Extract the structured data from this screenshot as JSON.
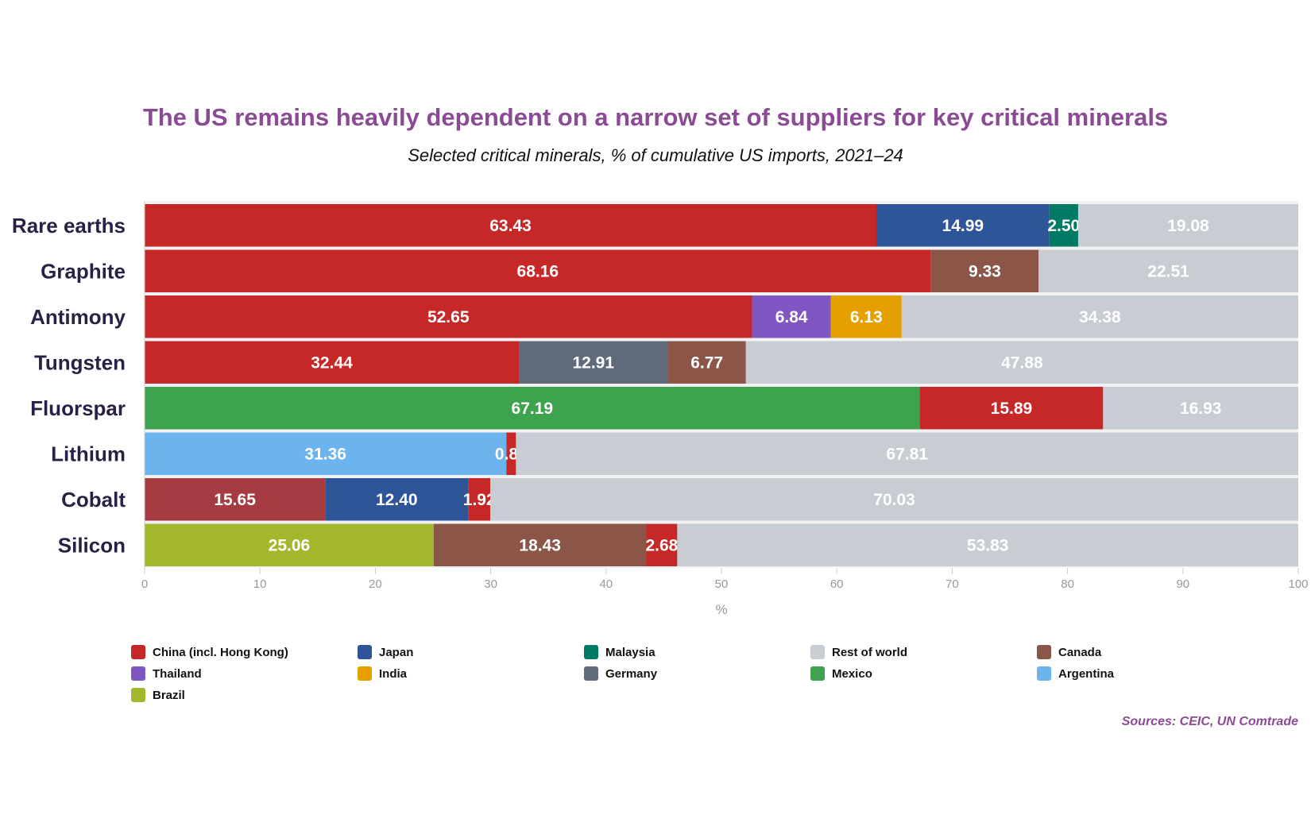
{
  "chart_data": {
    "type": "bar",
    "orientation": "horizontal",
    "stacked": true,
    "title": "The US remains heavily dependent on a narrow set of suppliers for key critical minerals",
    "subtitle": "Selected critical minerals, % of cumulative US imports, 2021–24",
    "xlabel": "%",
    "xlim": [
      0,
      100
    ],
    "xticks": [
      0,
      10,
      20,
      30,
      40,
      50,
      60,
      70,
      80,
      90,
      100
    ],
    "categories": [
      "Rare earths",
      "Graphite",
      "Antimony",
      "Tungsten",
      "Fluorspar",
      "Lithium",
      "Cobalt",
      "Silicon"
    ],
    "legend_position": "bottom",
    "countries": [
      {
        "name": "China (incl. Hong Kong)",
        "color": "#c62828"
      },
      {
        "name": "Japan",
        "color": "#2e5597"
      },
      {
        "name": "Malaysia",
        "color": "#007a65"
      },
      {
        "name": "Rest of world",
        "color": "#c8ccd3"
      },
      {
        "name": "Canada",
        "color": "#8b5548"
      },
      {
        "name": "Thailand",
        "color": "#7e57c2"
      },
      {
        "name": "India",
        "color": "#e5a000"
      },
      {
        "name": "Germany",
        "color": "#5f6b7a"
      },
      {
        "name": "Mexico",
        "color": "#3ea34f"
      },
      {
        "name": "Argentina",
        "color": "#6cb4ee"
      },
      {
        "name": "Brazil",
        "color": "#a3b62c"
      }
    ],
    "unlisted_color": "#a63c42",
    "bars": [
      [
        {
          "c": "China (incl. Hong Kong)",
          "v": 63.43
        },
        {
          "c": "Japan",
          "v": 14.99
        },
        {
          "c": "Malaysia",
          "v": 2.5
        },
        {
          "c": "Rest of world",
          "v": 19.08
        }
      ],
      [
        {
          "c": "China (incl. Hong Kong)",
          "v": 68.16
        },
        {
          "c": "Canada",
          "v": 9.33
        },
        {
          "c": "Rest of world",
          "v": 22.51
        }
      ],
      [
        {
          "c": "China (incl. Hong Kong)",
          "v": 52.65
        },
        {
          "c": "Thailand",
          "v": 6.84
        },
        {
          "c": "India",
          "v": 6.13
        },
        {
          "c": "Rest of world",
          "v": 34.38
        }
      ],
      [
        {
          "c": "China (incl. Hong Kong)",
          "v": 32.44
        },
        {
          "c": "Germany",
          "v": 12.91
        },
        {
          "c": "Canada",
          "v": 6.77
        },
        {
          "c": "Rest of world",
          "v": 47.88
        }
      ],
      [
        {
          "c": "Mexico",
          "v": 67.19
        },
        {
          "c": "China (incl. Hong Kong)",
          "v": 15.89
        },
        {
          "c": "Rest of world",
          "v": 16.93
        }
      ],
      [
        {
          "c": "Argentina",
          "v": 31.36
        },
        {
          "c": "China (incl. Hong Kong)",
          "v": 0.83
        },
        {
          "c": "Rest of world",
          "v": 67.81
        }
      ],
      [
        {
          "c": "",
          "v": 15.65
        },
        {
          "c": "Japan",
          "v": 12.4
        },
        {
          "c": "China (incl. Hong Kong)",
          "v": 1.92
        },
        {
          "c": "Rest of world",
          "v": 70.03
        }
      ],
      [
        {
          "c": "Brazil",
          "v": 25.06
        },
        {
          "c": "Canada",
          "v": 18.43
        },
        {
          "c": "China (incl. Hong Kong)",
          "v": 2.68
        },
        {
          "c": "Rest of world",
          "v": 53.83
        }
      ]
    ],
    "sources": "Sources: CEIC, UN Comtrade"
  }
}
